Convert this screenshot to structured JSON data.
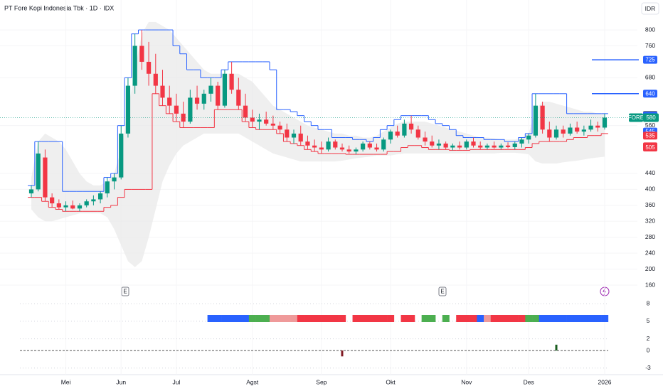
{
  "chart_data": {
    "type": "candlestick",
    "title": "PT Fore Kopi Indonesia Tbk · 1D · IDX",
    "currency": "IDR",
    "symbol": "FORE",
    "last_price": 580,
    "event_label": "E",
    "up_color": "#089981",
    "down_color": "#f23645",
    "ylim": [
      144,
      875
    ],
    "yticks": [
      160,
      200,
      240,
      280,
      320,
      360,
      400,
      440,
      560,
      680,
      760,
      800
    ],
    "grid": true,
    "categories": [
      null,
      null,
      null,
      null,
      null,
      "Mei",
      null,
      null,
      null,
      null,
      null,
      null,
      null,
      "Jun",
      null,
      null,
      null,
      null,
      null,
      null,
      null,
      "Jul",
      null,
      null,
      null,
      null,
      null,
      null,
      null,
      null,
      null,
      null,
      "Agst",
      null,
      null,
      null,
      null,
      null,
      null,
      null,
      null,
      null,
      "Sep",
      null,
      null,
      null,
      null,
      null,
      null,
      null,
      null,
      null,
      "Okt",
      null,
      null,
      null,
      null,
      null,
      null,
      null,
      null,
      null,
      null,
      "Nov",
      null,
      null,
      null,
      null,
      null,
      null,
      null,
      null,
      "Des",
      null,
      null,
      null,
      null,
      null,
      null,
      null,
      null,
      null,
      null,
      "2026"
    ],
    "candles": [
      [
        390,
        410,
        380,
        400
      ],
      [
        400,
        520,
        395,
        490
      ],
      [
        480,
        500,
        370,
        380
      ],
      [
        380,
        390,
        355,
        365
      ],
      [
        365,
        375,
        350,
        355
      ],
      [
        355,
        370,
        345,
        360
      ],
      [
        360,
        372,
        350,
        352
      ],
      [
        352,
        365,
        345,
        360
      ],
      [
        360,
        375,
        355,
        370
      ],
      [
        370,
        385,
        360,
        375
      ],
      [
        375,
        395,
        365,
        390
      ],
      [
        390,
        430,
        380,
        420
      ],
      [
        420,
        440,
        400,
        430
      ],
      [
        430,
        560,
        425,
        540
      ],
      [
        540,
        680,
        530,
        660
      ],
      [
        660,
        790,
        640,
        760
      ],
      [
        760,
        800,
        700,
        720
      ],
      [
        720,
        770,
        660,
        690
      ],
      [
        690,
        740,
        640,
        660
      ],
      [
        660,
        700,
        610,
        630
      ],
      [
        630,
        660,
        590,
        610
      ],
      [
        610,
        640,
        570,
        590
      ],
      [
        590,
        620,
        555,
        570
      ],
      [
        570,
        650,
        565,
        630
      ],
      [
        630,
        660,
        600,
        615
      ],
      [
        615,
        650,
        600,
        640
      ],
      [
        640,
        680,
        620,
        660
      ],
      [
        660,
        670,
        600,
        610
      ],
      [
        610,
        700,
        605,
        690
      ],
      [
        690,
        720,
        640,
        650
      ],
      [
        650,
        680,
        600,
        610
      ],
      [
        610,
        640,
        570,
        580
      ],
      [
        580,
        600,
        555,
        570
      ],
      [
        570,
        590,
        550,
        575
      ],
      [
        575,
        595,
        560,
        565
      ],
      [
        565,
        585,
        550,
        560
      ],
      [
        560,
        570,
        540,
        550
      ],
      [
        550,
        565,
        520,
        530
      ],
      [
        530,
        550,
        515,
        540
      ],
      [
        540,
        560,
        510,
        520
      ],
      [
        520,
        535,
        500,
        510
      ],
      [
        510,
        525,
        495,
        505
      ],
      [
        505,
        520,
        490,
        500
      ],
      [
        500,
        530,
        495,
        520
      ],
      [
        520,
        525,
        500,
        505
      ],
      [
        505,
        515,
        495,
        500
      ],
      [
        500,
        510,
        490,
        495
      ],
      [
        495,
        505,
        488,
        500
      ],
      [
        500,
        520,
        495,
        515
      ],
      [
        515,
        520,
        500,
        505
      ],
      [
        505,
        515,
        495,
        500
      ],
      [
        500,
        530,
        495,
        525
      ],
      [
        525,
        550,
        515,
        545
      ],
      [
        545,
        560,
        530,
        535
      ],
      [
        535,
        575,
        530,
        565
      ],
      [
        565,
        585,
        540,
        550
      ],
      [
        550,
        560,
        525,
        530
      ],
      [
        530,
        545,
        510,
        520
      ],
      [
        520,
        535,
        505,
        510
      ],
      [
        510,
        525,
        500,
        515
      ],
      [
        515,
        520,
        500,
        505
      ],
      [
        505,
        515,
        498,
        510
      ],
      [
        510,
        520,
        500,
        505
      ],
      [
        505,
        525,
        500,
        520
      ],
      [
        520,
        530,
        505,
        510
      ],
      [
        510,
        520,
        500,
        505
      ],
      [
        505,
        515,
        500,
        510
      ],
      [
        510,
        520,
        502,
        505
      ],
      [
        505,
        515,
        500,
        510
      ],
      [
        510,
        518,
        503,
        506
      ],
      [
        506,
        520,
        500,
        515
      ],
      [
        515,
        530,
        505,
        525
      ],
      [
        525,
        540,
        515,
        535
      ],
      [
        535,
        640,
        530,
        610
      ],
      [
        610,
        620,
        540,
        550
      ],
      [
        550,
        570,
        520,
        530
      ],
      [
        530,
        560,
        525,
        550
      ],
      [
        550,
        560,
        530,
        540
      ],
      [
        540,
        565,
        535,
        555
      ],
      [
        555,
        570,
        540,
        545
      ],
      [
        545,
        560,
        535,
        550
      ],
      [
        550,
        575,
        545,
        560
      ],
      [
        560,
        570,
        545,
        555
      ],
      [
        555,
        590,
        550,
        580
      ]
    ],
    "channel": {
      "upper_color": "#2962ff",
      "lower_color": "#f23645",
      "upper": [
        410,
        520,
        520,
        520,
        520,
        395,
        395,
        395,
        395,
        395,
        395,
        430,
        440,
        560,
        680,
        790,
        800,
        800,
        800,
        800,
        800,
        760,
        740,
        700,
        700,
        680,
        680,
        680,
        700,
        720,
        720,
        720,
        720,
        720,
        720,
        700,
        600,
        600,
        595,
        585,
        570,
        560,
        550,
        550,
        530,
        530,
        530,
        525,
        525,
        520,
        530,
        550,
        560,
        575,
        585,
        585,
        585,
        585,
        575,
        565,
        560,
        550,
        535,
        530,
        530,
        530,
        525,
        525,
        525,
        520,
        520,
        530,
        540,
        640,
        640,
        640,
        640,
        640,
        590,
        590,
        590,
        590,
        590,
        590
      ],
      "lower": [
        380,
        380,
        370,
        355,
        350,
        345,
        345,
        345,
        345,
        345,
        345,
        355,
        360,
        380,
        400,
        400,
        400,
        400,
        640,
        610,
        590,
        570,
        555,
        555,
        555,
        555,
        555,
        600,
        600,
        600,
        600,
        570,
        555,
        550,
        550,
        550,
        540,
        520,
        515,
        510,
        500,
        495,
        490,
        490,
        490,
        490,
        488,
        488,
        488,
        488,
        488,
        488,
        495,
        495,
        505,
        510,
        510,
        505,
        500,
        500,
        500,
        498,
        498,
        498,
        500,
        500,
        500,
        500,
        500,
        500,
        500,
        500,
        505,
        515,
        520,
        520,
        520,
        520,
        525,
        530,
        530,
        535,
        535,
        540
      ]
    },
    "band": {
      "color": "#e8e8e8",
      "upper": [
        430,
        520,
        540,
        530,
        520,
        500,
        470,
        440,
        420,
        410,
        410,
        420,
        440,
        500,
        600,
        700,
        790,
        820,
        820,
        810,
        800,
        780,
        760,
        740,
        720,
        700,
        690,
        690,
        690,
        690,
        690,
        680,
        670,
        650,
        630,
        610,
        600,
        590,
        580,
        570,
        560,
        555,
        550,
        545,
        540,
        540,
        535,
        535,
        530,
        530,
        535,
        545,
        555,
        565,
        570,
        570,
        570,
        570,
        565,
        560,
        555,
        550,
        545,
        540,
        535,
        530,
        530,
        528,
        525,
        525,
        525,
        530,
        540,
        600,
        620,
        620,
        615,
        610,
        605,
        600,
        595,
        595,
        590,
        590
      ],
      "lower": [
        350,
        330,
        320,
        320,
        325,
        330,
        335,
        340,
        340,
        340,
        340,
        330,
        300,
        260,
        220,
        205,
        220,
        280,
        350,
        420,
        460,
        490,
        510,
        520,
        530,
        540,
        540,
        540,
        540,
        540,
        540,
        530,
        520,
        510,
        500,
        490,
        485,
        480,
        475,
        470,
        470,
        470,
        470,
        470,
        470,
        472,
        475,
        478,
        480,
        482,
        485,
        485,
        485,
        488,
        490,
        490,
        490,
        490,
        490,
        490,
        490,
        490,
        490,
        490,
        490,
        490,
        490,
        490,
        492,
        492,
        492,
        490,
        488,
        470,
        465,
        465,
        465,
        468,
        470,
        472,
        475,
        478,
        480,
        482
      ]
    },
    "price_labels": [
      {
        "value": 725,
        "color": "#2962ff",
        "line": true
      },
      {
        "value": 640,
        "color": "#2962ff",
        "line": true
      },
      {
        "value": 587,
        "color": "#787b86",
        "line": false
      },
      {
        "value": 585,
        "color": "#2962ff",
        "line": false
      },
      {
        "value": 545,
        "color": "#2962ff",
        "line": false
      },
      {
        "value": 535,
        "color": "#f23645",
        "line": false
      },
      {
        "value": 508,
        "color": "#f23645",
        "line": false
      },
      {
        "value": 505,
        "color": "#f23645",
        "line": false
      }
    ],
    "last_color": "#089981",
    "indicator": {
      "ylim": [
        -4,
        9
      ],
      "yticks": [
        8,
        5,
        2,
        0,
        -3
      ],
      "status_colors": [
        null,
        null,
        null,
        null,
        null,
        null,
        null,
        null,
        null,
        null,
        null,
        null,
        null,
        null,
        null,
        null,
        null,
        null,
        null,
        null,
        null,
        null,
        null,
        null,
        null,
        null,
        "#2962ff",
        "#2962ff",
        "#2962ff",
        "#2962ff",
        "#2962ff",
        "#2962ff",
        "#4caf50",
        "#4caf50",
        "#4caf50",
        "#ef9a9a",
        "#ef9a9a",
        "#ef9a9a",
        "#ef9a9a",
        "#f23645",
        "#f23645",
        "#f23645",
        "#f23645",
        "#f23645",
        "#f23645",
        "#f23645",
        null,
        "#f23645",
        "#f23645",
        "#f23645",
        "#f23645",
        "#f23645",
        "#f23645",
        null,
        "#f23645",
        "#f23645",
        null,
        "#4caf50",
        "#4caf50",
        null,
        "#4caf50",
        null,
        "#f23645",
        "#f23645",
        "#f23645",
        "#2962ff",
        "#ef9a9a",
        "#f23645",
        "#f23645",
        "#f23645",
        "#f23645",
        "#f23645",
        "#4caf50",
        "#4caf50",
        "#2962ff",
        "#2962ff",
        "#2962ff",
        "#2962ff",
        "#2962ff",
        "#2962ff",
        "#2962ff",
        "#2962ff",
        "#2962ff",
        "#2962ff"
      ],
      "values": [
        null,
        null,
        null,
        null,
        null,
        null,
        null,
        null,
        null,
        null,
        null,
        null,
        null,
        null,
        null,
        null,
        null,
        null,
        null,
        null,
        null,
        null,
        null,
        null,
        null,
        null,
        null,
        null,
        null,
        null,
        null,
        null,
        null,
        null,
        null,
        null,
        null,
        null,
        null,
        null,
        null,
        null,
        null,
        null,
        null,
        -1,
        null,
        null,
        null,
        null,
        null,
        null,
        null,
        null,
        null,
        null,
        null,
        null,
        null,
        null,
        null,
        null,
        null,
        null,
        null,
        null,
        null,
        null,
        null,
        null,
        null,
        null,
        null,
        null,
        null,
        null,
        1,
        null,
        null,
        null,
        null,
        null,
        null,
        null
      ],
      "pos_color": "#1b5e20",
      "neg_color": "#801922"
    }
  }
}
